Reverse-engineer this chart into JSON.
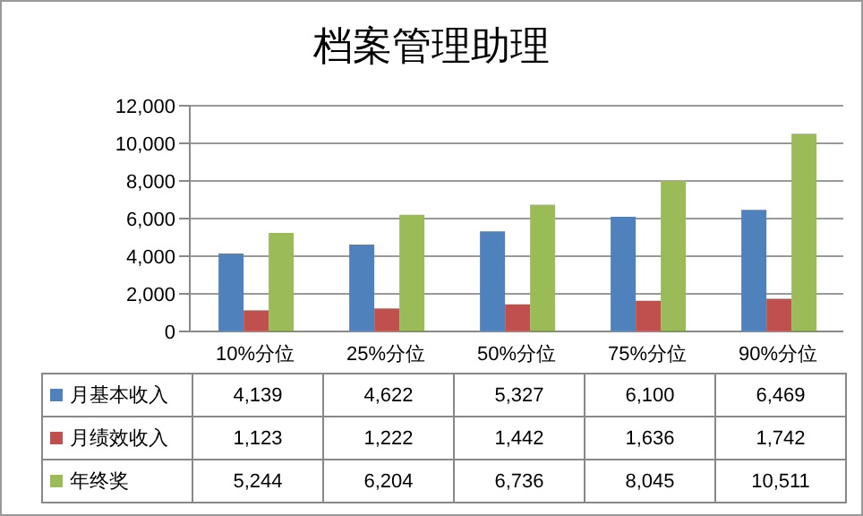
{
  "chart_data": {
    "type": "bar",
    "title": "档案管理助理",
    "categories": [
      "10%分位",
      "25%分位",
      "50%分位",
      "75%分位",
      "90%分位"
    ],
    "series": [
      {
        "name": "月基本收入",
        "color": "#4f81bd",
        "values": [
          4139,
          4622,
          5327,
          6100,
          6469
        ],
        "value_labels": [
          "4,139",
          "4,622",
          "5,327",
          "6,100",
          "6,469"
        ]
      },
      {
        "name": "月绩效收入",
        "color": "#c0504d",
        "values": [
          1123,
          1222,
          1442,
          1636,
          1742
        ],
        "value_labels": [
          "1,123",
          "1,222",
          "1,442",
          "1,636",
          "1,742"
        ]
      },
      {
        "name": "年终奖",
        "color": "#9bbb59",
        "values": [
          5244,
          6204,
          6736,
          8045,
          10511
        ],
        "value_labels": [
          "5,244",
          "6,204",
          "6,736",
          "8,045",
          "10,511"
        ]
      }
    ],
    "ylim": [
      0,
      12000
    ],
    "yticks": [
      {
        "value": 0,
        "label": "0"
      },
      {
        "value": 2000,
        "label": "2,000"
      },
      {
        "value": 4000,
        "label": "4,000"
      },
      {
        "value": 6000,
        "label": "6,000"
      },
      {
        "value": 8000,
        "label": "8,000"
      },
      {
        "value": 10000,
        "label": "10,000"
      },
      {
        "value": 12000,
        "label": "12,000"
      }
    ],
    "grid": "y",
    "legend": "bottom"
  }
}
